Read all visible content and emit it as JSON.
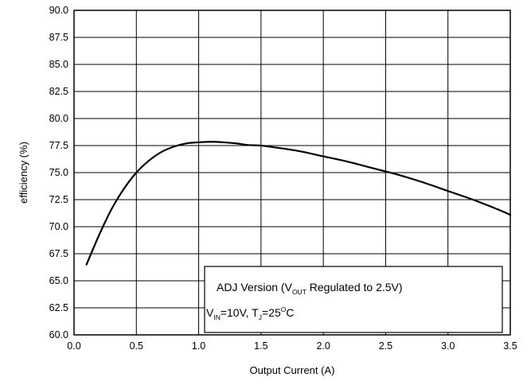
{
  "chart_data": {
    "type": "line",
    "xlabel": "Output Current (A)",
    "ylabel": "efficiency (%)",
    "xlim": [
      0.0,
      3.5
    ],
    "ylim": [
      60.0,
      90.0
    ],
    "x_ticks": [
      "0.0",
      "0.5",
      "1.0",
      "1.5",
      "2.0",
      "2.5",
      "3.0",
      "3.5"
    ],
    "y_ticks": [
      "60.0",
      "62.5",
      "65.0",
      "67.5",
      "70.0",
      "72.5",
      "75.0",
      "77.5",
      "80.0",
      "82.5",
      "85.0",
      "87.5",
      "90.0"
    ],
    "grid": true,
    "series": [
      {
        "x": [
          0.1,
          0.2,
          0.3,
          0.4,
          0.5,
          0.6,
          0.7,
          0.8,
          0.9,
          1.0,
          1.1,
          1.2,
          1.3,
          1.4,
          1.5,
          1.6,
          1.8,
          2.0,
          2.2,
          2.4,
          2.6,
          2.8,
          3.0,
          3.2,
          3.4,
          3.5
        ],
        "y": [
          66.5,
          69.2,
          71.6,
          73.5,
          75.0,
          76.1,
          76.9,
          77.4,
          77.7,
          77.8,
          77.85,
          77.8,
          77.7,
          77.55,
          77.5,
          77.35,
          77.0,
          76.5,
          76.0,
          75.4,
          74.8,
          74.1,
          73.3,
          72.5,
          71.6,
          71.1
        ]
      }
    ],
    "annotation": {
      "line1_prefix": "ADJ Version (V",
      "line1_sub": "OUT",
      "line1_suffix": " Regulated to 2.5V)",
      "line2_v": "V",
      "line2_v_sub": "IN",
      "line2_mid": "=10V, T",
      "line2_t_sub": "J",
      "line2_temp": "=25",
      "line2_deg": "O",
      "line2_unit": "C"
    }
  }
}
